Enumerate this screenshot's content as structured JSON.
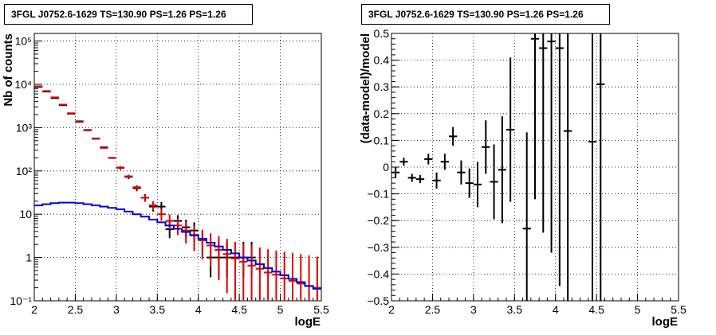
{
  "chart_data": [
    {
      "type": "line",
      "title": "3FGL J0752.6-1629 TS=130.90 PS=1.26 PS=1.26",
      "xlabel": "logE",
      "ylabel": "Nb of counts",
      "xlim": [
        2,
        5.5
      ],
      "ylim": [
        0.1,
        150000
      ],
      "yscale": "log",
      "grid": true,
      "x_ticks": [
        "2",
        "2.5",
        "3",
        "3.5",
        "4",
        "4.5",
        "5",
        "5.5"
      ],
      "y_ticks": [
        "10⁻¹",
        "1",
        "10",
        "10²",
        "10³",
        "10⁴",
        "10⁵"
      ],
      "series": [
        {
          "color": "#000000",
          "style": "errorbar",
          "x": [
            2.05,
            2.15,
            2.25,
            2.35,
            2.45,
            2.55,
            2.65,
            2.75,
            2.85,
            2.95,
            3.05,
            3.15,
            3.25,
            3.35,
            3.45,
            3.55,
            3.65,
            3.75,
            3.85,
            3.95,
            4.05,
            4.15,
            4.25,
            4.35,
            4.45,
            4.55,
            4.65
          ],
          "y": [
            8700,
            6800,
            4800,
            3300,
            2100,
            1400,
            880,
            560,
            350,
            200,
            118,
            73,
            40,
            24,
            15,
            15,
            4.5,
            7,
            5,
            4.2,
            2.5,
            1,
            1,
            1,
            1,
            1,
            1
          ],
          "ylow": [
            8600,
            6700,
            4700,
            3200,
            2050,
            1350,
            850,
            540,
            335,
            190,
            107,
            65,
            34,
            19.5,
            11.5,
            11,
            2.8,
            4.5,
            2.9,
            2.3,
            1.2,
            0.35,
            0.35,
            0.35,
            0.35,
            0.35,
            0.35
          ],
          "yhigh": [
            8800,
            6900,
            4900,
            3400,
            2150,
            1450,
            910,
            580,
            365,
            210,
            129,
            81,
            46,
            29,
            19,
            19,
            6.7,
            9.5,
            7.5,
            6.5,
            3.8,
            2.3,
            2.3,
            2.3,
            2.3,
            2.3,
            2.3
          ]
        },
        {
          "color": "#dd0000",
          "style": "errorbar",
          "x": [
            2.05,
            2.15,
            2.25,
            2.35,
            2.45,
            2.55,
            2.65,
            2.75,
            2.85,
            2.95,
            3.05,
            3.15,
            3.25,
            3.35,
            3.45,
            3.55,
            3.65,
            3.75,
            3.85,
            3.95,
            4.05,
            4.15,
            4.25,
            4.35,
            4.45,
            4.55,
            4.65,
            4.75,
            4.85,
            4.95,
            5.05,
            5.15,
            5.25,
            5.35,
            5.45
          ],
          "y": [
            9000,
            7000,
            5000,
            3400,
            2150,
            1350,
            860,
            550,
            340,
            200,
            120,
            75,
            42,
            24,
            16,
            10,
            7,
            5.5,
            4.2,
            3.2,
            2.5,
            1.9,
            1.5,
            1.2,
            0.95,
            0.8,
            0.65,
            0.55,
            0.45,
            0.4,
            0.33,
            0.29,
            0.25,
            0.22,
            0.2
          ],
          "ylow": [
            8900,
            6900,
            4900,
            3300,
            2100,
            1300,
            830,
            530,
            325,
            190,
            112,
            68,
            37,
            20,
            12.5,
            7,
            4.5,
            3.3,
            2.1,
            1.4,
            0.9,
            0.6,
            0.3,
            0.15,
            0.1,
            0.1,
            0.1,
            0.1,
            0.1,
            0.1,
            0.1,
            0.1,
            0.1,
            0.1,
            0.1
          ],
          "yhigh": [
            9100,
            7100,
            5100,
            3500,
            2200,
            1400,
            890,
            570,
            355,
            210,
            128,
            82,
            47,
            28,
            20,
            13,
            9.8,
            8,
            6.6,
            5.3,
            4.4,
            3.6,
            3.1,
            2.7,
            2.3,
            2.1,
            1.9,
            1.7,
            1.55,
            1.45,
            1.35,
            1.28,
            1.2,
            1.12,
            1.05
          ]
        },
        {
          "color": "#0000dd",
          "style": "step",
          "x": [
            2.05,
            2.15,
            2.25,
            2.35,
            2.45,
            2.55,
            2.65,
            2.75,
            2.85,
            2.95,
            3.05,
            3.15,
            3.25,
            3.35,
            3.45,
            3.55,
            3.65,
            3.75,
            3.85,
            3.95,
            4.05,
            4.15,
            4.25,
            4.35,
            4.45,
            4.55,
            4.65,
            4.75,
            4.85,
            4.95,
            5.05,
            5.15,
            5.25,
            5.35,
            5.45
          ],
          "y": [
            16,
            17,
            18,
            18.5,
            18.5,
            18,
            17,
            16,
            15,
            14,
            13,
            11.5,
            10,
            8.8,
            7.5,
            6.5,
            5.5,
            4.6,
            3.9,
            3.3,
            2.7,
            2.2,
            1.8,
            1.5,
            1.25,
            1.0,
            0.85,
            0.7,
            0.57,
            0.47,
            0.39,
            0.32,
            0.27,
            0.22,
            0.19
          ]
        }
      ]
    },
    {
      "type": "scatter",
      "title": "3FGL J0752.6-1629 TS=130.90 PS=1.26 PS=1.26",
      "xlabel": "logE",
      "ylabel": "(data-model)/model",
      "xlim": [
        2,
        5.5
      ],
      "ylim": [
        -0.5,
        0.5
      ],
      "grid": true,
      "x_ticks": [
        "2",
        "2.5",
        "3",
        "3.5",
        "4",
        "4.5",
        "5",
        "5.5"
      ],
      "y_ticks": [
        "−0.5",
        "−0.4",
        "−0.3",
        "−0.2",
        "−0.1",
        "0",
        "0.1",
        "0.2",
        "0.3",
        "0.4",
        "0.5"
      ],
      "series": [
        {
          "color": "#000000",
          "style": "errorbar",
          "x": [
            2.05,
            2.15,
            2.25,
            2.35,
            2.45,
            2.55,
            2.65,
            2.75,
            2.85,
            2.95,
            3.05,
            3.15,
            3.25,
            3.35,
            3.45,
            3.65,
            3.75,
            3.85,
            3.95,
            4.05,
            4.15,
            4.45,
            4.55
          ],
          "y": [
            -0.02,
            0.02,
            -0.04,
            -0.045,
            0.03,
            -0.05,
            0.02,
            0.115,
            -0.02,
            -0.06,
            -0.065,
            0.075,
            -0.055,
            -0.01,
            0.14,
            -0.23,
            0.48,
            0.445,
            0.47,
            0.445,
            0.135,
            0.095,
            0.31
          ],
          "yerr": [
            0.02,
            0.015,
            0.015,
            0.015,
            0.02,
            0.03,
            0.03,
            0.035,
            0.045,
            0.055,
            0.085,
            0.1,
            0.14,
            0.2,
            0.27,
            0.36,
            0.6,
            0.69,
            0.79,
            0.89,
            1.0,
            1.0,
            1.0
          ]
        }
      ]
    }
  ]
}
